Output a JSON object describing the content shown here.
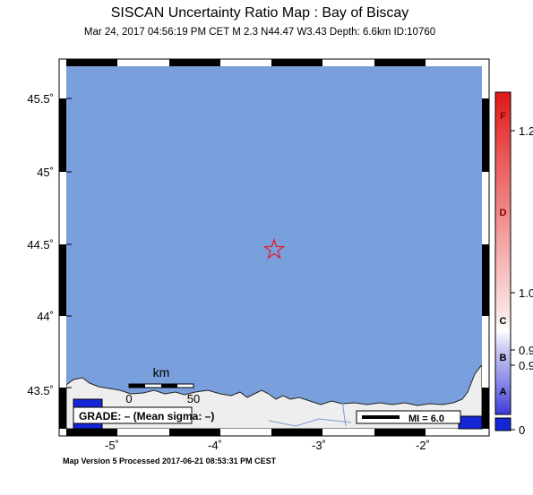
{
  "header": {
    "title": "SISCAN Uncertainty Ratio Map : Bay of Biscay",
    "subtitle": "Mar 24, 2017 04:56:19 PM CET    M 2.3    N44.47 W3.43    Depth: 6.6km    ID:10760"
  },
  "map": {
    "sea_color": "#799fdc",
    "land_color": "#eeeeee",
    "epicenter": {
      "lon": -3.43,
      "lat": 44.47,
      "marker": "star-icon",
      "color": "#e0202a"
    },
    "lon_ticks": [
      "-5˚",
      "-4˚",
      "-3˚",
      "-2˚"
    ],
    "lat_ticks": [
      "45.5˚",
      "45˚",
      "44.5˚",
      "44˚",
      "43.5˚"
    ],
    "scalebar": {
      "unit": "km",
      "labels": [
        "0",
        "50"
      ]
    },
    "grade_box": "GRADE: – (Mean sigma: –)",
    "mi_legend": "MI = 6.0"
  },
  "colorbar": {
    "letters": [
      "F",
      "D",
      "C",
      "B",
      "A"
    ],
    "values": [
      "1.2",
      "1.0",
      "0.9",
      "0.9",
      "0"
    ]
  },
  "footer": {
    "text": "Map Version 5 Processed 2017-06-21 08:53:31 PM CEST"
  }
}
